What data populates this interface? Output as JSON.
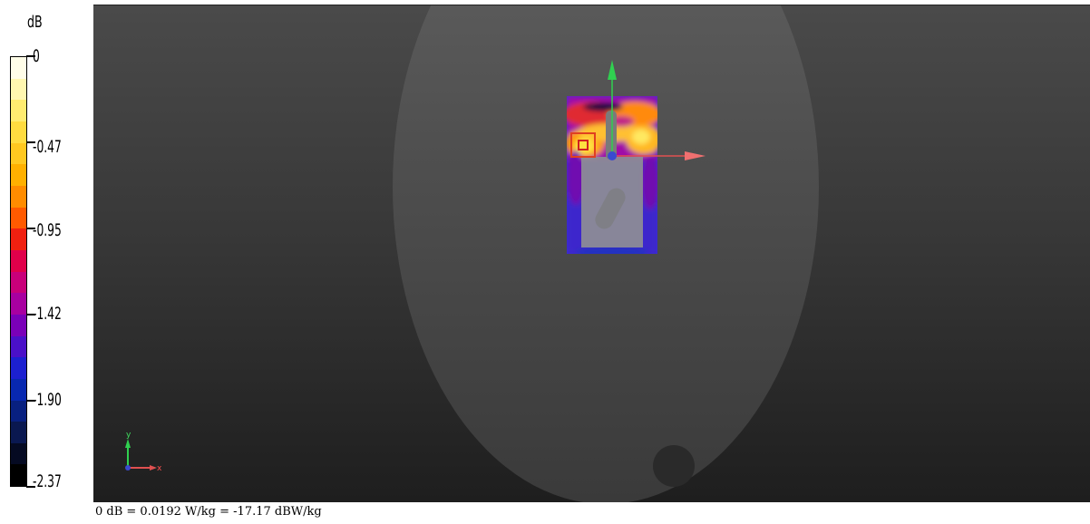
{
  "legend": {
    "unit": "dB",
    "ticks": [
      "0",
      "-0.47",
      "-0.95",
      "-1.42",
      "-1.90",
      "-2.37"
    ],
    "colors": [
      "#fffde8",
      "#fff7b0",
      "#ffec70",
      "#ffdc40",
      "#ffc820",
      "#ffb000",
      "#ff8c00",
      "#ff5a00",
      "#f02010",
      "#e0004a",
      "#c8007a",
      "#a800a0",
      "#7a00b8",
      "#4a10c8",
      "#1c20d0",
      "#0828b0",
      "#082080",
      "#0a1850",
      "#050a22",
      "#000000"
    ]
  },
  "viewport": {
    "axis_labels": {
      "x": "x",
      "y": "y"
    },
    "colors": {
      "x_axis": "#ff6060",
      "y_axis": "#20d040",
      "origin": "#3a4ad0"
    }
  },
  "footnote": "0 dB = 0.0192 W/kg = -17.17 dBW/kg"
}
